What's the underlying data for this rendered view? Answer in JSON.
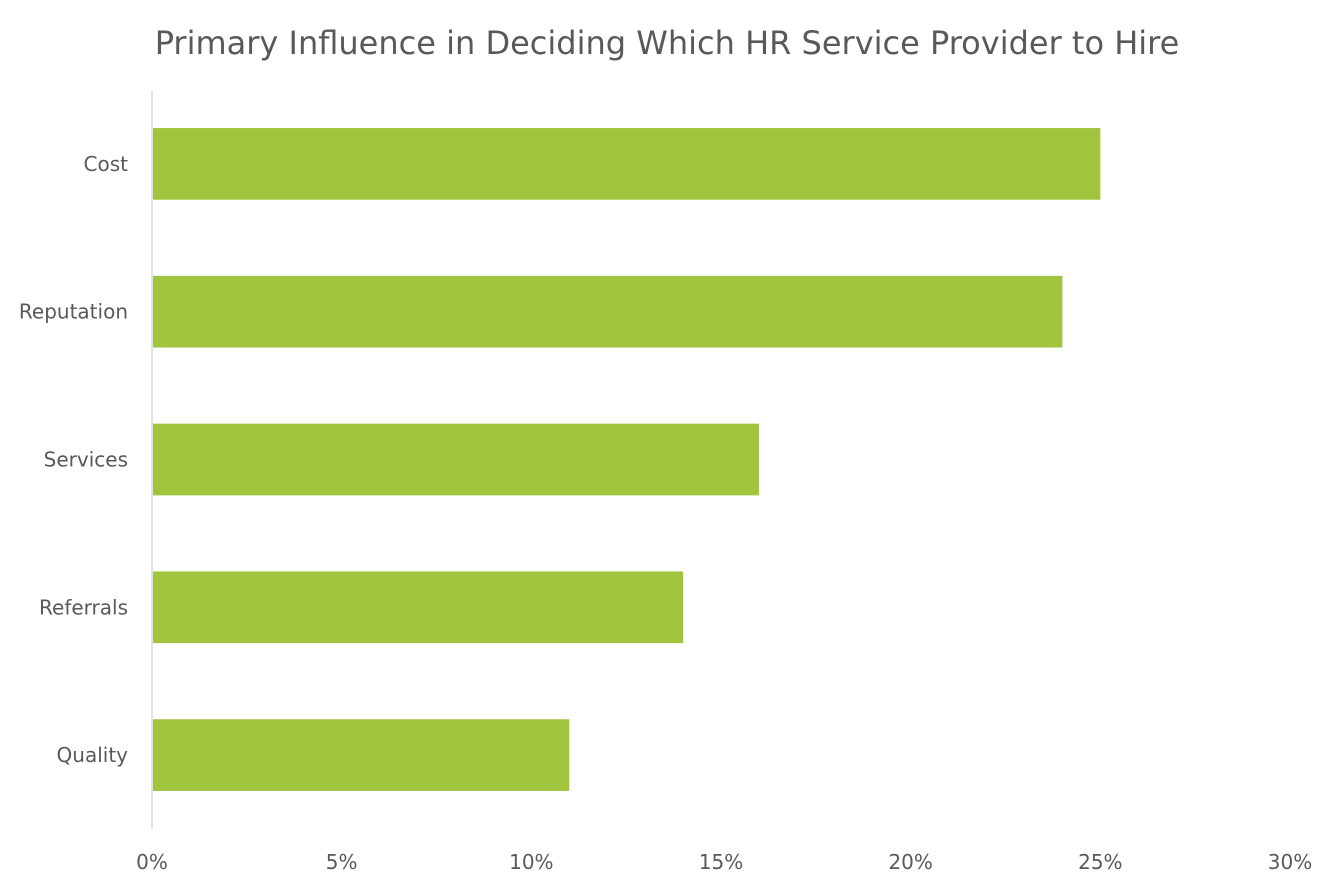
{
  "chart_data": {
    "type": "bar",
    "orientation": "horizontal",
    "title": "Primary Influence in Deciding Which HR Service Provider to Hire",
    "xlabel": "",
    "ylabel": "",
    "categories": [
      "Cost",
      "Reputation",
      "Services",
      "Referrals",
      "Quality"
    ],
    "values": [
      25,
      24,
      16,
      14,
      11
    ],
    "unit": "%",
    "xlim": [
      0,
      30
    ],
    "xticks": [
      0,
      5,
      10,
      15,
      20,
      25,
      30
    ],
    "tick_labels": [
      "0%",
      "5%",
      "10%",
      "15%",
      "20%",
      "25%",
      "30%"
    ],
    "grid": false,
    "legend": "none",
    "bar_color": "#A1C43E",
    "axis_color": "#D9D9D9",
    "text_color": "#595959"
  }
}
